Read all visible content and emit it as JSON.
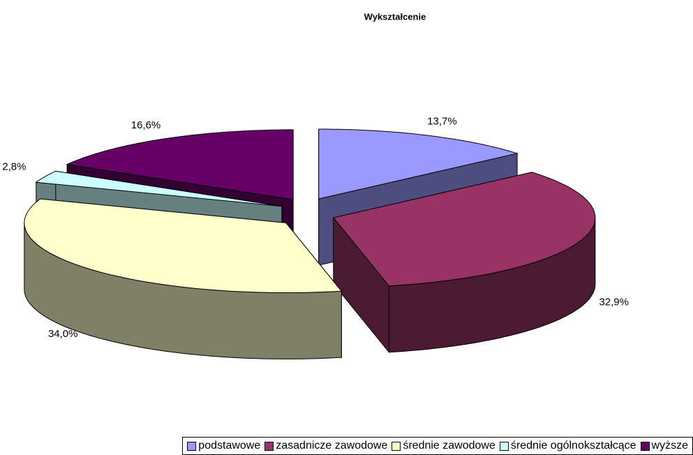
{
  "chart_data": {
    "type": "pie",
    "title": "Wykształcenie",
    "categories": [
      "podstawowe",
      "zasadnicze zawodowe",
      "średnie zawodowe",
      "średnie ogólnokształcące",
      "wyższe"
    ],
    "values": [
      13.7,
      32.9,
      34.0,
      2.8,
      16.6
    ],
    "value_labels": [
      "13,7%",
      "32,9%",
      "34,0%",
      "2,8%",
      "16,6%"
    ],
    "colors": [
      "#9999ff",
      "#993366",
      "#ffffcc",
      "#ccffff",
      "#660066"
    ],
    "legend": "bottom"
  }
}
